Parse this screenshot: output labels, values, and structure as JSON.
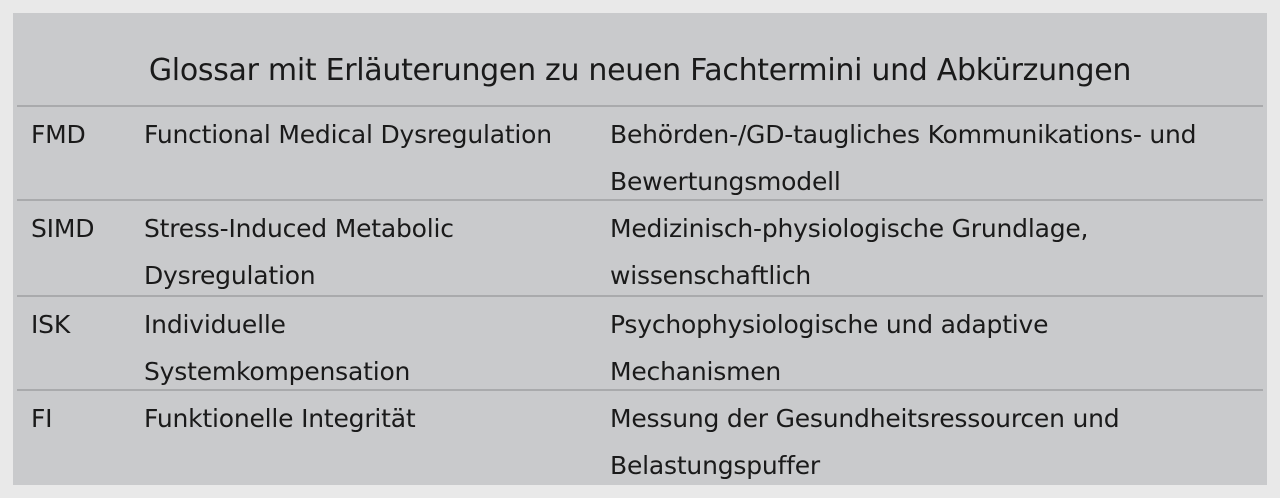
{
  "title": "Glossar mit Erläuterungen zu neuen Fachtermini und Abkürzungen",
  "rows": [
    {
      "abbr": "FMD",
      "term": "Functional Medical Dysregulation",
      "description": "Behörden-/GD-taugliches Kommunikations- und Bewertungsmodell"
    },
    {
      "abbr": "SIMD",
      "term": "Stress-Induced Metabolic Dysregulation",
      "description": "Medizinisch-physiologische Grundlage, wissenschaftlich"
    },
    {
      "abbr": "ISK",
      "term": "Individuelle Systemkompensation",
      "description": "Psychophysiologische und adaptive Mechanismen"
    },
    {
      "abbr": "FI",
      "term": "Funktionelle Integrität",
      "description": "Messung der Gesundheitsressourcen und Belastungspuffer"
    }
  ]
}
